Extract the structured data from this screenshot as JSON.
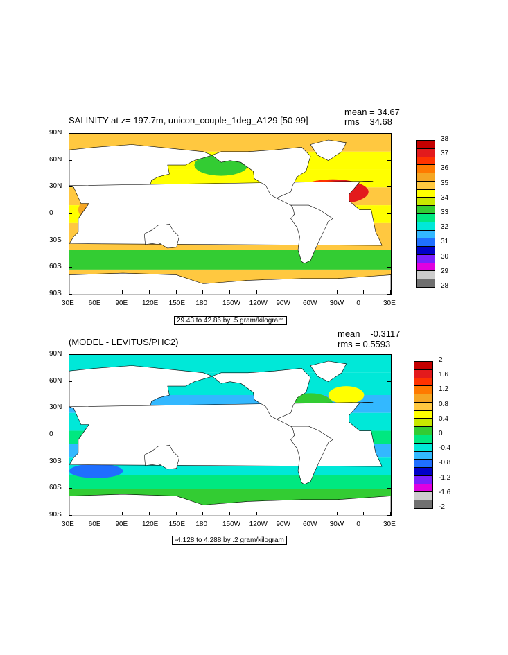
{
  "chart_data": [
    {
      "type": "filled-contour-map",
      "title": "SALINITY at z= 197.7m, unicon_couple_1deg_A129 [50-99]",
      "stats": {
        "mean": "mean = 34.67",
        "rms": "rms = 34.68"
      },
      "contour_info": "29.43 to 42.86 by .5 gram/kilogram",
      "x_ticks": [
        "30E",
        "60E",
        "90E",
        "120E",
        "150E",
        "180",
        "150W",
        "120W",
        "90W",
        "60W",
        "30W",
        "0",
        "30E"
      ],
      "y_ticks": [
        "90N",
        "60N",
        "30N",
        "0",
        "30S",
        "60S",
        "90S"
      ],
      "colorbar": {
        "labels": [
          "38",
          "37",
          "36",
          "35",
          "34",
          "33",
          "32",
          "31",
          "30",
          "29",
          "28"
        ],
        "colors": [
          "#c40000",
          "#e31a1c",
          "#ff3300",
          "#ff7a00",
          "#f5a623",
          "#ffc840",
          "#ffff00",
          "#c8e800",
          "#33cc33",
          "#00e880",
          "#00e8d8",
          "#33b8ff",
          "#1f6fff",
          "#0000c8",
          "#7a1fff",
          "#e000e0",
          "#cccccc",
          "#707070"
        ]
      }
    },
    {
      "type": "filled-contour-map",
      "title": "(MODEL - LEVITUS/PHC2)",
      "stats": {
        "mean": "mean = -0.3117",
        "rms": "rms = 0.5593"
      },
      "contour_info": "-4.128 to 4.288 by .2 gram/kilogram",
      "x_ticks": [
        "30E",
        "60E",
        "90E",
        "120E",
        "150E",
        "180",
        "150W",
        "120W",
        "90W",
        "60W",
        "30W",
        "0",
        "30E"
      ],
      "y_ticks": [
        "90N",
        "60N",
        "30N",
        "0",
        "30S",
        "60S",
        "90S"
      ],
      "colorbar": {
        "labels": [
          "2",
          "1.6",
          "1.2",
          "0.8",
          "0.4",
          "0",
          "-0.4",
          "-0.8",
          "-1.2",
          "-1.6",
          "-2"
        ],
        "colors": [
          "#c40000",
          "#e31a1c",
          "#ff3300",
          "#ff7a00",
          "#f5a623",
          "#ffc840",
          "#ffff00",
          "#c8e800",
          "#33cc33",
          "#00e880",
          "#00e8d8",
          "#33b8ff",
          "#1f6fff",
          "#0000c8",
          "#7a1fff",
          "#e000e0",
          "#cccccc",
          "#707070"
        ]
      }
    }
  ]
}
